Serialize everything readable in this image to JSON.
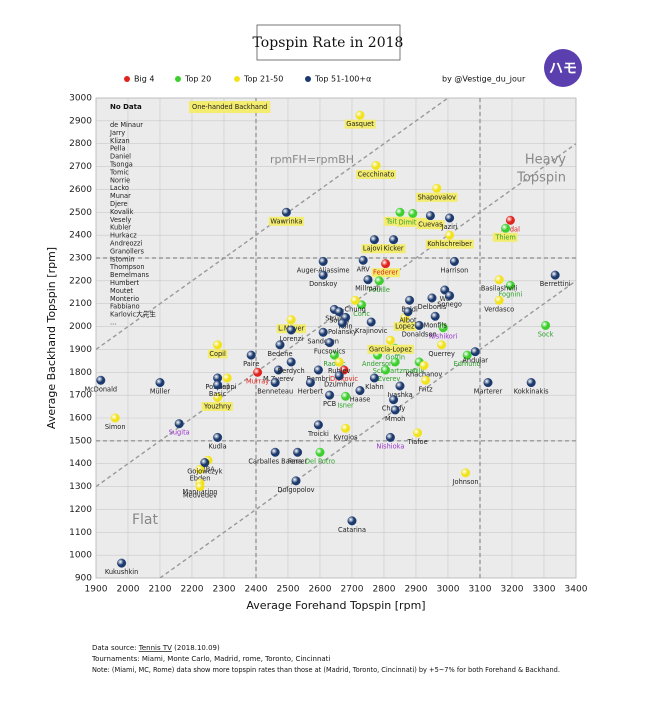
{
  "chart_data": {
    "type": "scatter",
    "title": "Topspin Rate in 2018",
    "credit": "by @Vestige_du_jour",
    "logo": "ハモ",
    "x_label": "Average Forehand Topspin [rpm]",
    "y_label": "Average Backhand Topspin [rpm]",
    "xlim": [
      1900,
      3400
    ],
    "ylim": [
      900,
      3000
    ],
    "xticks": [
      1900,
      2000,
      2100,
      2200,
      2300,
      2400,
      2500,
      2600,
      2700,
      2800,
      2900,
      3000,
      3100,
      3200,
      3300,
      3400
    ],
    "yticks": [
      900,
      1000,
      1100,
      1200,
      1300,
      1400,
      1500,
      1600,
      1700,
      1800,
      1900,
      2000,
      2100,
      2200,
      2300,
      2400,
      2500,
      2600,
      2700,
      2800,
      2900,
      3000
    ],
    "grid": true,
    "ref_x": [
      2400,
      3100
    ],
    "ref_y": [
      1500,
      2300
    ],
    "diagonals": [
      {
        "x": [
          1900,
          3000
        ],
        "y": [
          1900,
          3000
        ]
      },
      {
        "x": [
          1900,
          3400
        ],
        "y": [
          1300,
          2800
        ]
      },
      {
        "x": [
          2100,
          3400
        ],
        "y": [
          900,
          2200
        ]
      }
    ],
    "highlight_color": "#f3ec6e",
    "one_handed_label": "One-handed Backhand",
    "annotations": {
      "equal_line": "rpmFH=rpmBH",
      "heavy": [
        "Heavy",
        "Topspin"
      ],
      "flat": "Flat"
    },
    "no_data": {
      "title": "No Data",
      "players": [
        "de Minaur",
        "Jarry",
        "Klizan",
        "Pella",
        "Daniel",
        "Tsonga",
        "Tomic",
        "Norrie",
        "Lacko",
        "Munar",
        "Djere",
        "Kovalik",
        "Vesely",
        "Kubler",
        "Hurkacz",
        "Andreozzi",
        "Granollers",
        "Istomin",
        "Thompson",
        "Bemelmans",
        "Humbert",
        "Moutet",
        "Monterio",
        "Fabbiano",
        "Karlovic大先生",
        "..."
      ]
    },
    "series": [
      {
        "name": "Big 4",
        "color": "#e0231c",
        "label_color": "#e0231c",
        "labels": [
          "Nadal",
          "Federer",
          "Djokovic",
          "Murray"
        ],
        "x": [
          3195,
          2805,
          2675,
          2405
        ],
        "y": [
          2465,
          2275,
          1810,
          1800
        ],
        "highlight": [
          false,
          true,
          false,
          false
        ]
      },
      {
        "name": "Top 20",
        "color": "#3ccf2e",
        "label_color": "#2ea02a",
        "labels": [
          "Tsitsipas",
          "Dimitrov",
          "Thiem",
          "Pouille",
          "Fognini",
          "Coric",
          "Goffin",
          "Raonic",
          "Anderson",
          "Schwartzman",
          "Cilic",
          "Edmund",
          "A.Zverev",
          "Isner",
          "Del Potro",
          "Nishikori",
          "Sock"
        ],
        "x": [
          2850,
          2890,
          3180,
          2785,
          3195,
          2730,
          2835,
          2645,
          2780,
          2835,
          2910,
          3060,
          2805,
          2680,
          2600,
          2985,
          3305
        ],
        "y": [
          2500,
          2495,
          2430,
          2200,
          2180,
          2095,
          1905,
          1875,
          1875,
          1845,
          1845,
          1875,
          1810,
          1695,
          1450,
          1995,
          2005
        ],
        "highlight": [
          true,
          true,
          true,
          false,
          false,
          false,
          false,
          false,
          false,
          false,
          false,
          false,
          false,
          false,
          false,
          false,
          false
        ],
        "label_colors": [
          null,
          null,
          null,
          null,
          null,
          null,
          null,
          null,
          null,
          null,
          null,
          null,
          null,
          null,
          null,
          "#9933cc",
          null
        ]
      },
      {
        "name": "Top 21-50",
        "color": "#f2e21c",
        "label_color": "#222222",
        "labels": [
          "Gasquet",
          "Cecchinato",
          "Shapovalov",
          "Kohlschreiber",
          "Basilashvili",
          "Chung",
          "Verdasco",
          "Lopez",
          "L.Mayer",
          "Garcia-Lopez",
          "Copil",
          "Querrey",
          "Rublev",
          "Khachanov",
          "Seppi",
          "Fritz",
          "Youzhny",
          "Simon",
          "Kyrgios",
          "Tiafoe",
          "RBA",
          "Ebden",
          "Mannarino",
          "Medvedev",
          "Johnson"
        ],
        "x": [
          2725,
          2775,
          2965,
          3005,
          3160,
          2710,
          3160,
          2865,
          2510,
          2820,
          2280,
          2980,
          2660,
          2925,
          2310,
          2930,
          2280,
          1960,
          2680,
          2905,
          2250,
          2225,
          2225,
          2225,
          3055
        ],
        "y": [
          2925,
          2705,
          2605,
          2400,
          2205,
          2115,
          2115,
          2040,
          2030,
          1940,
          1920,
          1920,
          1845,
          1830,
          1775,
          1765,
          1690,
          1600,
          1555,
          1535,
          1415,
          1375,
          1315,
          1300,
          1360
        ],
        "highlight": [
          true,
          true,
          true,
          true,
          false,
          false,
          false,
          true,
          true,
          true,
          true,
          false,
          false,
          false,
          false,
          false,
          true,
          false,
          false,
          false,
          false,
          false,
          false,
          false,
          false
        ]
      },
      {
        "name": "Top 51-100+α",
        "color": "#1c3a6e",
        "label_color": "#222222",
        "labels": [
          "Wawrinka",
          "Cuevas",
          "Jaziri",
          "Lajovic",
          "Kicker",
          "Auger-Aliassime",
          "ARV",
          "Harrison",
          "Berrettini",
          "Donskoy",
          "Millman",
          "Wu",
          "Baldi",
          "Delbonis",
          "Sonego",
          "Struff",
          "Sousa",
          "Albot",
          "Monfils",
          "Koln",
          "Polansky",
          "Krajinovic",
          "Lorenzi",
          "Donaldson",
          "Sandgren",
          "Bedene",
          "Fucsovics",
          "Paire",
          "Andujar",
          "M.Zverev",
          "Berdych",
          "Bambri",
          "Pospisil",
          "Basic",
          "McDonald",
          "Müller",
          "Dzumhur",
          "Klahn",
          "Benneteau",
          "Herbert",
          "Haase",
          "Ivashka",
          "Marterer",
          "Kokkinakis",
          "PCB",
          "Chardy",
          "Mmoh",
          "Sugita",
          "Troicki",
          "Nishioka",
          "Kudla",
          "Carballes Baena",
          "Ferrer",
          "Gojowczyk",
          "Dolgopolov",
          "Catarina",
          "Kukushkin"
        ],
        "x": [
          2495,
          2945,
          3005,
          2770,
          2830,
          2610,
          2735,
          3020,
          3335,
          2610,
          2750,
          2990,
          2880,
          2950,
          3005,
          2645,
          2660,
          2875,
          2960,
          2680,
          2670,
          2760,
          2510,
          2910,
          2610,
          2475,
          2630,
          2385,
          3085,
          2470,
          2510,
          2595,
          2280,
          2280,
          1915,
          2100,
          2660,
          2770,
          2460,
          2570,
          2725,
          2850,
          3125,
          3260,
          2630,
          2830,
          2835,
          2160,
          2595,
          2820,
          2280,
          2460,
          2530,
          2240,
          2525,
          2700,
          1980
        ],
        "y": [
          2500,
          2485,
          2475,
          2380,
          2380,
          2285,
          2290,
          2285,
          2225,
          2225,
          2205,
          2160,
          2115,
          2125,
          2135,
          2075,
          2065,
          2065,
          2045,
          2040,
          2015,
          2020,
          1985,
          2005,
          1975,
          1920,
          1930,
          1875,
          1890,
          1810,
          1845,
          1810,
          1775,
          1745,
          1765,
          1755,
          1785,
          1775,
          1755,
          1755,
          1720,
          1740,
          1755,
          1755,
          1700,
          1680,
          1635,
          1575,
          1570,
          1515,
          1515,
          1450,
          1450,
          1405,
          1325,
          1150,
          965
        ],
        "highlight": [
          true,
          true,
          false,
          true,
          true,
          false,
          false,
          false,
          false,
          false,
          false,
          false,
          false,
          false,
          false,
          false,
          false,
          false,
          false,
          false,
          false,
          false,
          false,
          false,
          false,
          false,
          false,
          false,
          false,
          false,
          false,
          false,
          false,
          false,
          false,
          false,
          false,
          false,
          false,
          false,
          false,
          false,
          false,
          false,
          false,
          false,
          false,
          false,
          false,
          false,
          false,
          false,
          false,
          false,
          false,
          false,
          false
        ],
        "label_colors": [
          null,
          null,
          null,
          null,
          null,
          null,
          null,
          null,
          null,
          null,
          null,
          null,
          null,
          null,
          null,
          null,
          null,
          null,
          null,
          null,
          null,
          null,
          null,
          null,
          null,
          null,
          null,
          null,
          null,
          null,
          null,
          null,
          null,
          null,
          null,
          null,
          null,
          null,
          null,
          null,
          null,
          null,
          null,
          null,
          null,
          null,
          null,
          "#9933cc",
          null,
          "#9933cc",
          null,
          null,
          null,
          null,
          null,
          null,
          null
        ]
      }
    ],
    "footer": {
      "source_label": "Data source:",
      "source": "Tennis TV",
      "source_date": "(2018.10.09)",
      "tournaments": "Tournaments: Miami, Monte Carlo, Madrid, rome, Toronto, Cincinnati",
      "note": "Note: (Miami, MC, Rome) data show more topspin rates than those at (Madrid, Toronto, Cincinnati) by +5~7% for both Forehand & Backhand."
    }
  }
}
